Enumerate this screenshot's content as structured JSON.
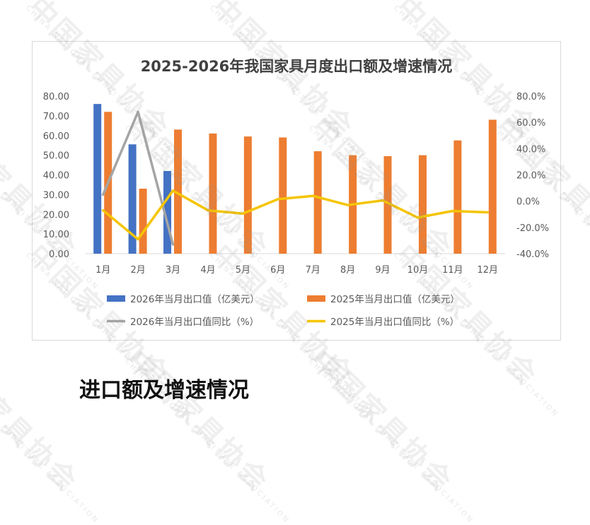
{
  "chart_data": {
    "type": "bar",
    "title": "2025-2026年我国家具月度出口额及增速情况",
    "categories": [
      "1月",
      "2月",
      "3月",
      "4月",
      "5月",
      "6月",
      "7月",
      "8月",
      "9月",
      "10月",
      "11月",
      "12月"
    ],
    "y_left": {
      "ticks": [
        "0.00",
        "10.00",
        "20.00",
        "30.00",
        "40.00",
        "50.00",
        "60.00",
        "70.00",
        "80.00"
      ],
      "ylim": [
        0,
        80
      ]
    },
    "y_right": {
      "ticks": [
        "-40.0%",
        "-20.0%",
        "0.0%",
        "20.0%",
        "40.0%",
        "60.0%",
        "80.0%"
      ],
      "ylim": [
        -40,
        80
      ]
    },
    "series": [
      {
        "name": "2026年当月出口值（亿美元）",
        "type": "bar",
        "axis": "left",
        "color": "#4472c4",
        "values": [
          76.0,
          55.5,
          42.0,
          null,
          null,
          null,
          null,
          null,
          null,
          null,
          null,
          null
        ]
      },
      {
        "name": "2025年当月出口值（亿美元）",
        "type": "bar",
        "axis": "left",
        "color": "#ed7d31",
        "values": [
          72.0,
          33.0,
          63.0,
          61.0,
          59.5,
          59.0,
          52.0,
          50.0,
          49.5,
          50.0,
          57.5,
          68.0
        ]
      },
      {
        "name": "2026年当月出口值同比（%）",
        "type": "line",
        "axis": "right",
        "color": "#a5a5a5",
        "values": [
          5.0,
          68.0,
          -33.0,
          null,
          null,
          null,
          null,
          null,
          null,
          null,
          null,
          null
        ]
      },
      {
        "name": "2025年当月出口值同比（%）",
        "type": "line",
        "axis": "right",
        "color": "#f5c400",
        "values": [
          -7.0,
          -29.0,
          8.0,
          -7.0,
          -9.5,
          1.5,
          4.0,
          -3.0,
          0.5,
          -12.5,
          -7.5,
          -8.5
        ]
      }
    ],
    "legend_position": "bottom",
    "grid": false
  },
  "watermark": {
    "brand": "中国家具协会",
    "english": "CHINA NATIONAL FURNITURE ASSOCIATION"
  },
  "bottom_heading": "进口额及增速情况"
}
